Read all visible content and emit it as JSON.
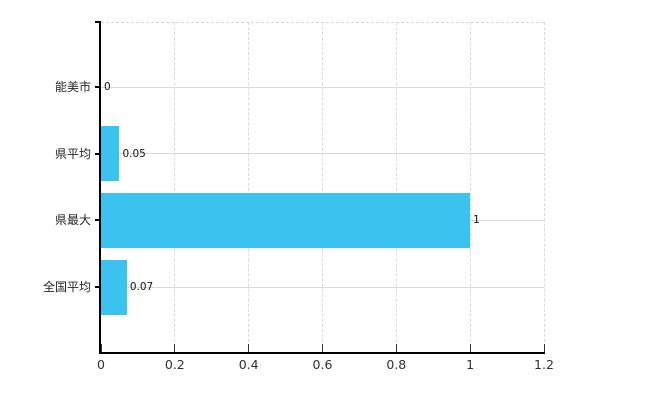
{
  "chart_data": {
    "type": "bar",
    "orientation": "horizontal",
    "title": "",
    "categories": [
      "能美市",
      "県平均",
      "県最大",
      "全国平均"
    ],
    "values": [
      0,
      0.05,
      1,
      0.07
    ],
    "value_labels": [
      "0",
      "0.05",
      "1",
      "0.07"
    ],
    "xlim": [
      0,
      1.2
    ],
    "x_ticks": [
      0,
      0.2,
      0.4,
      0.6,
      0.8,
      1,
      1.2
    ],
    "x_tick_labels": [
      "0",
      "0.2",
      "0.4",
      "0.6",
      "0.8",
      "1",
      "1.2"
    ],
    "grid": true,
    "legend": false,
    "colors": {
      "bar": "#3BC2EF",
      "axis": "#000000",
      "tick": "#333333",
      "grid": "#D8D8D8",
      "text": "#262626",
      "background": "#FFFFFF"
    }
  }
}
